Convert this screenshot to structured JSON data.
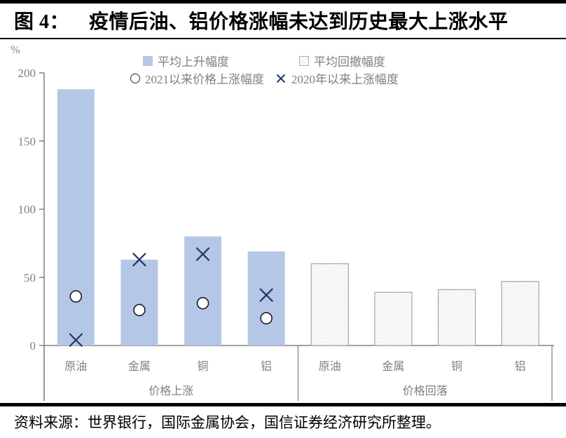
{
  "header": {
    "figure_label": "图 4：",
    "title": "疫情后油、铝价格涨幅未达到历史最大上涨水平"
  },
  "legend": {
    "avg_rise": "平均上升幅度",
    "avg_drawdown": "平均回撤幅度",
    "rise_since_2021": "2021以来价格上涨幅度",
    "rise_since_2020": "2020年以来上涨幅度"
  },
  "footer": {
    "source": "资料来源：世界银行，国际金属协会，国信证券经济研究所整理。"
  },
  "colors": {
    "bar_blue": "#B4C7E7",
    "bar_hatch_border": "#A6A6A6",
    "hatch_line": "#E6E6E6",
    "marker_x": "#203864",
    "marker_circle_stroke": "#1A1A1A",
    "axis": "#808080",
    "text_gray": "#7F7F7F",
    "title_black": "#000000"
  },
  "chart_data": {
    "type": "bar",
    "title": "疫情后油、铝价格涨幅未达到历史最大上涨水平",
    "xlabel": "",
    "ylabel": "%",
    "ylim": [
      0,
      200
    ],
    "yticks": [
      0,
      50,
      100,
      150,
      200
    ],
    "grid": false,
    "legend_position": "top",
    "groups": [
      {
        "label": "价格上涨",
        "categories": [
          "原油",
          "金属",
          "铜",
          "铝"
        ],
        "series": [
          {
            "name": "平均上升幅度",
            "type": "bar",
            "style": "solid",
            "values": [
              188,
              63,
              80,
              69
            ]
          },
          {
            "name": "2021以来价格上涨幅度",
            "type": "scatter",
            "marker": "circle",
            "values": [
              36,
              26,
              31,
              20
            ]
          },
          {
            "name": "2020年以来上涨幅度",
            "type": "scatter",
            "marker": "x",
            "values": [
              4,
              63,
              67,
              37
            ]
          }
        ]
      },
      {
        "label": "价格回落",
        "categories": [
          "原油",
          "金属",
          "铜",
          "铝"
        ],
        "series": [
          {
            "name": "平均回撤幅度",
            "type": "bar",
            "style": "hatched",
            "values": [
              60,
              39,
              41,
              47
            ]
          }
        ]
      }
    ]
  }
}
